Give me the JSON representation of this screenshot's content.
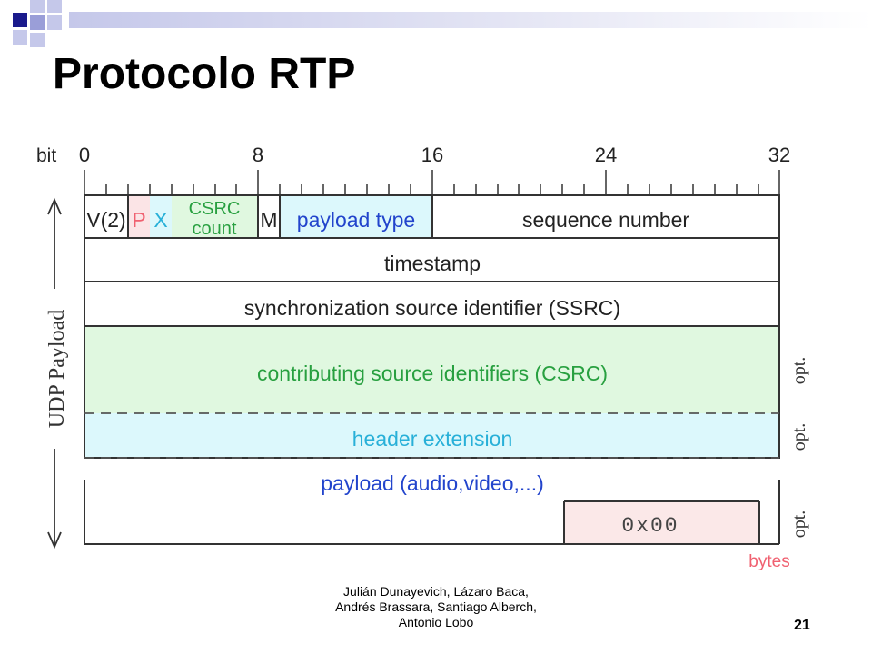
{
  "slide": {
    "title": "Protocolo RTP",
    "footer_lines": [
      "Julián Dunayevich, Lázaro Baca,",
      "Andrés Brassara, Santiago Alberch,",
      "Antonio Lobo"
    ],
    "page_number": "21"
  },
  "diagram": {
    "bit_label": "bit",
    "bit_ticks": [
      "0",
      "8",
      "16",
      "24",
      "32"
    ],
    "side_label": "UDP Payload",
    "fields": {
      "version": "V(2)",
      "padding": "P",
      "extension": "X",
      "csrc_count_line1": "CSRC",
      "csrc_count_line2": "count",
      "marker": "M",
      "payload_type": "payload type",
      "sequence_number": "sequence number",
      "timestamp": "timestamp",
      "ssrc": "synchronization source identifier (SSRC)",
      "csrc": "contributing source identifiers (CSRC)",
      "header_extension": "header extension",
      "payload": "payload (audio,video,...)",
      "padding_bytes": "0x00"
    },
    "opt_labels": [
      "opt.",
      "opt.",
      "opt."
    ],
    "bytes_label": "bytes",
    "colors": {
      "padding_text": "#f06070",
      "extension_text": "#28b0d8",
      "csrc_text": "#28a040",
      "blue_text": "#2244cc",
      "csrc_fill": "#e0f8e0",
      "extension_fill": "#dcf8fc",
      "pad_fill": "#fbe8e8",
      "bytes_text": "#f06070"
    }
  }
}
